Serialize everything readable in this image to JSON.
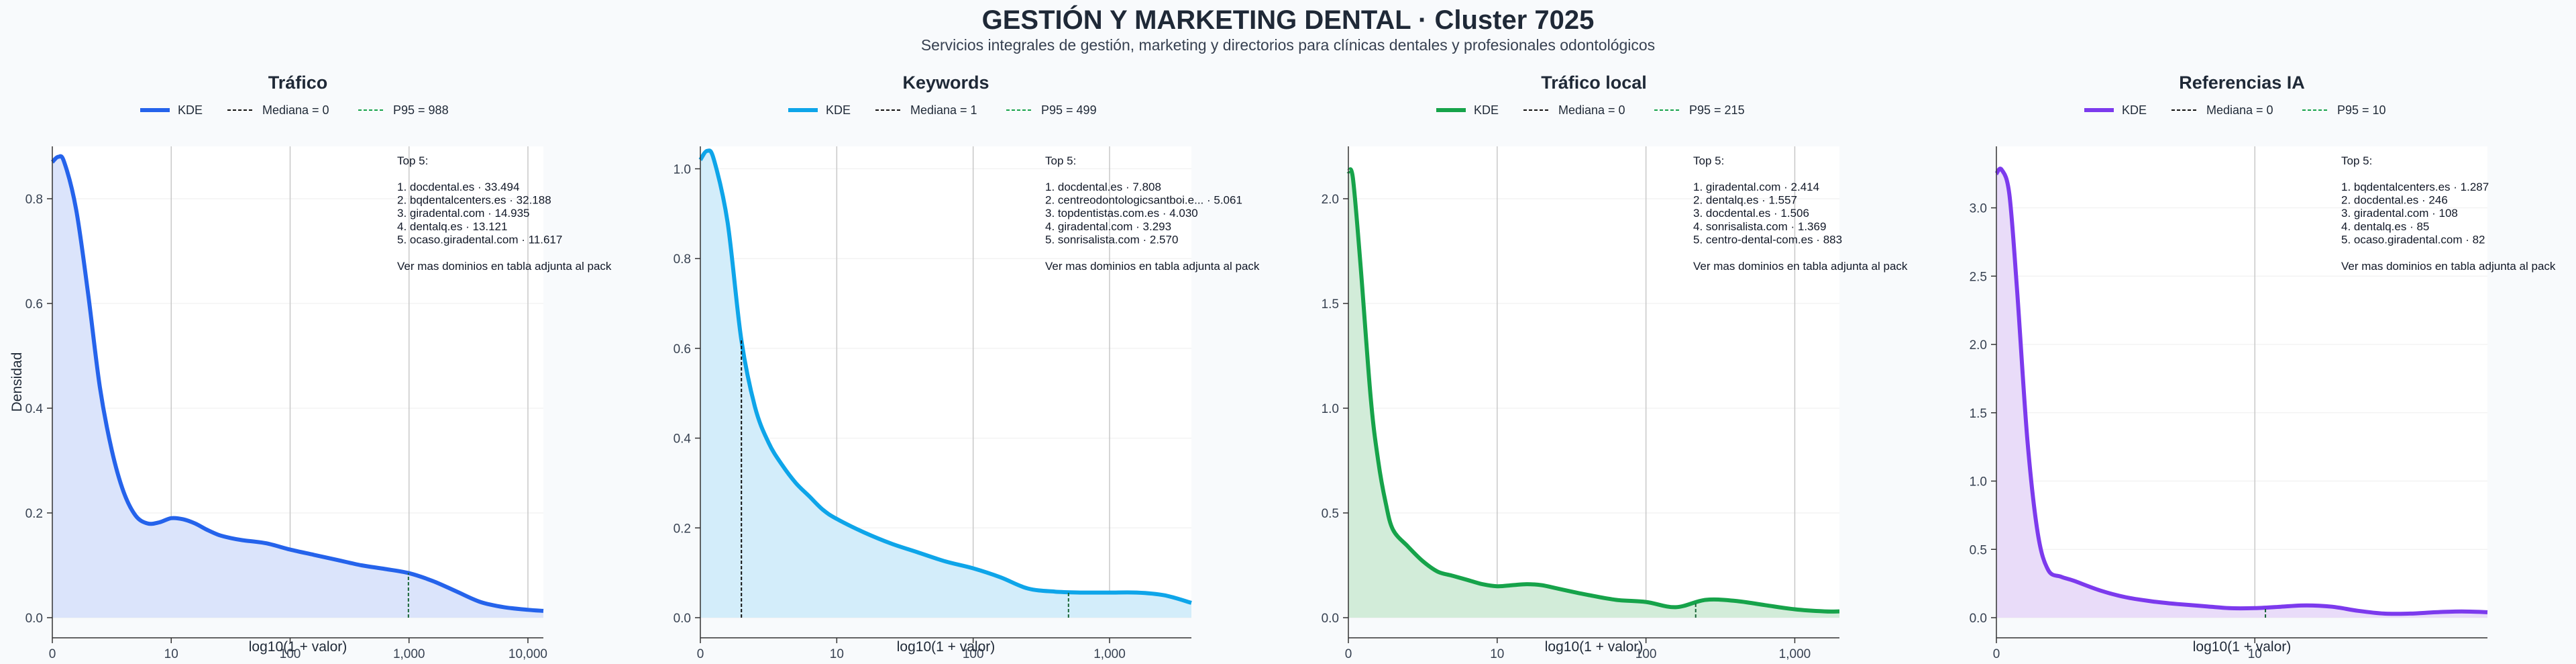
{
  "header": {
    "title": "GESTIÓN Y MARKETING DENTAL · Cluster 7025",
    "subtitle": "Servicios integrales de gestión, marketing y directorios para clínicas dentales y profesionales odontológicos"
  },
  "chart_data": [
    {
      "type": "area",
      "title": "Tráfico",
      "color": "#2563eb",
      "fill": "#dbe4fb",
      "xlabel": "log10(1 + valor)",
      "ylabel": "Densidad",
      "x_scale": "log10(1+x)",
      "xlim": [
        0,
        4.13
      ],
      "ylim": [
        0,
        0.9
      ],
      "xticks": [
        {
          "v": 0,
          "label": "0"
        },
        {
          "v": 1,
          "label": "10"
        },
        {
          "v": 2,
          "label": "100"
        },
        {
          "v": 3,
          "label": "1,000"
        },
        {
          "v": 4,
          "label": "10,000"
        }
      ],
      "yticks": [
        {
          "v": 0,
          "label": "0.0"
        },
        {
          "v": 0.2,
          "label": "0.2"
        },
        {
          "v": 0.4,
          "label": "0.4"
        },
        {
          "v": 0.6,
          "label": "0.6"
        },
        {
          "v": 0.8,
          "label": "0.8"
        }
      ],
      "legend": {
        "kde": "KDE",
        "median": "Mediana = 0",
        "p95": "P95 = 988"
      },
      "median": 0,
      "p95": 2.995,
      "x": [
        0,
        0.05,
        0.1,
        0.2,
        0.3,
        0.4,
        0.5,
        0.6,
        0.7,
        0.8,
        0.9,
        1.0,
        1.1,
        1.2,
        1.3,
        1.4,
        1.5,
        1.6,
        1.8,
        2.0,
        2.2,
        2.4,
        2.6,
        2.8,
        3.0,
        3.2,
        3.4,
        3.6,
        3.8,
        4.0,
        4.13
      ],
      "y": [
        0.87,
        0.88,
        0.87,
        0.78,
        0.62,
        0.44,
        0.32,
        0.24,
        0.195,
        0.18,
        0.182,
        0.19,
        0.188,
        0.18,
        0.168,
        0.158,
        0.152,
        0.148,
        0.142,
        0.13,
        0.12,
        0.11,
        0.1,
        0.093,
        0.085,
        0.07,
        0.05,
        0.03,
        0.02,
        0.015,
        0.013
      ],
      "top5": {
        "header": "Top 5:",
        "items": [
          "1. docdental.es · 33.494",
          "2. bqdentalcenters.es · 32.188",
          "3. giradental.com · 14.935",
          "4. dentalq.es · 13.121",
          "5. ocaso.giradental.com · 11.617"
        ],
        "footer": "Ver mas dominios en tabla adjunta al pack"
      }
    },
    {
      "type": "area",
      "title": "Keywords",
      "color": "#0ea5e9",
      "fill": "#d3edfa",
      "xlabel": "log10(1 + valor)",
      "ylabel": "",
      "x_scale": "log10(1+x)",
      "xlim": [
        0,
        3.6
      ],
      "ylim": [
        0,
        1.05
      ],
      "xticks": [
        {
          "v": 0,
          "label": "0"
        },
        {
          "v": 1,
          "label": "10"
        },
        {
          "v": 2,
          "label": "100"
        },
        {
          "v": 3,
          "label": "1,000"
        }
      ],
      "yticks": [
        {
          "v": 0,
          "label": "0.0"
        },
        {
          "v": 0.2,
          "label": "0.2"
        },
        {
          "v": 0.4,
          "label": "0.4"
        },
        {
          "v": 0.6,
          "label": "0.6"
        },
        {
          "v": 0.8,
          "label": "0.8"
        },
        {
          "v": 1.0,
          "label": "1.0"
        }
      ],
      "legend": {
        "kde": "KDE",
        "median": "Mediana = 1",
        "p95": "P95 = 499"
      },
      "median": 0.301,
      "p95": 2.699,
      "x": [
        0,
        0.05,
        0.1,
        0.2,
        0.3,
        0.4,
        0.5,
        0.6,
        0.7,
        0.8,
        0.9,
        1.0,
        1.2,
        1.4,
        1.6,
        1.8,
        2.0,
        2.2,
        2.4,
        2.6,
        2.8,
        3.0,
        3.2,
        3.4,
        3.6
      ],
      "y": [
        1.02,
        1.04,
        1.02,
        0.88,
        0.62,
        0.47,
        0.39,
        0.34,
        0.3,
        0.27,
        0.24,
        0.22,
        0.19,
        0.165,
        0.145,
        0.125,
        0.11,
        0.09,
        0.065,
        0.058,
        0.056,
        0.056,
        0.056,
        0.05,
        0.033
      ],
      "top5": {
        "header": "Top 5:",
        "items": [
          "1. docdental.es · 7.808",
          "2. centreodontologicsantboi.e... · 5.061",
          "3. topdentistas.com.es · 4.030",
          "4. giradental.com · 3.293",
          "5. sonrisalista.com · 2.570"
        ],
        "footer": "Ver mas dominios en tabla adjunta al pack"
      }
    },
    {
      "type": "area",
      "title": "Tráfico local",
      "color": "#16a34a",
      "fill": "#d2ecd9",
      "xlabel": "log10(1 + valor)",
      "ylabel": "",
      "x_scale": "log10(1+x)",
      "xlim": [
        0,
        3.3
      ],
      "ylim": [
        0,
        2.25
      ],
      "xticks": [
        {
          "v": 0,
          "label": "0"
        },
        {
          "v": 1,
          "label": "10"
        },
        {
          "v": 2,
          "label": "100"
        },
        {
          "v": 3,
          "label": "1,000"
        }
      ],
      "yticks": [
        {
          "v": 0,
          "label": "0.0"
        },
        {
          "v": 0.5,
          "label": "0.5"
        },
        {
          "v": 1.0,
          "label": "1.0"
        },
        {
          "v": 1.5,
          "label": "1.5"
        },
        {
          "v": 2.0,
          "label": "2.0"
        }
      ],
      "legend": {
        "kde": "KDE",
        "median": "Mediana = 0",
        "p95": "P95 = 215"
      },
      "median": 0,
      "p95": 2.334,
      "x": [
        0,
        0.03,
        0.08,
        0.15,
        0.2,
        0.25,
        0.3,
        0.4,
        0.5,
        0.6,
        0.7,
        0.8,
        0.9,
        1.0,
        1.1,
        1.2,
        1.3,
        1.4,
        1.6,
        1.8,
        2.0,
        2.2,
        2.4,
        2.6,
        2.8,
        3.0,
        3.2,
        3.3
      ],
      "y": [
        2.13,
        2.1,
        1.7,
        1.05,
        0.75,
        0.55,
        0.42,
        0.34,
        0.27,
        0.22,
        0.2,
        0.18,
        0.16,
        0.15,
        0.155,
        0.16,
        0.155,
        0.14,
        0.11,
        0.085,
        0.075,
        0.05,
        0.085,
        0.08,
        0.06,
        0.04,
        0.03,
        0.03
      ],
      "top5": {
        "header": "Top 5:",
        "items": [
          "1. giradental.com · 2.414",
          "2. dentalq.es · 1.557",
          "3. docdental.es · 1.506",
          "4. sonrisalista.com · 1.369",
          "5. centro-dental-com.es · 883"
        ],
        "footer": "Ver mas dominios en tabla adjunta al pack"
      }
    },
    {
      "type": "area",
      "title": "Referencias IA",
      "color": "#7c3aed",
      "fill": "#e9dcf9",
      "xlabel": "log10(1 + valor)",
      "ylabel": "",
      "x_scale": "log10(1+x)",
      "xlim": [
        0,
        1.9
      ],
      "ylim": [
        0,
        3.45
      ],
      "xticks": [
        {
          "v": 0,
          "label": "0"
        },
        {
          "v": 1,
          "label": "10"
        }
      ],
      "yticks": [
        {
          "v": 0,
          "label": "0.0"
        },
        {
          "v": 0.5,
          "label": "0.5"
        },
        {
          "v": 1.0,
          "label": "1.0"
        },
        {
          "v": 1.5,
          "label": "1.5"
        },
        {
          "v": 2.0,
          "label": "2.0"
        },
        {
          "v": 2.5,
          "label": "2.5"
        },
        {
          "v": 3.0,
          "label": "3.0"
        }
      ],
      "legend": {
        "kde": "KDE",
        "median": "Mediana = 0",
        "p95": "P95 = 10"
      },
      "median": 0,
      "p95": 1.041,
      "x": [
        0,
        0.02,
        0.05,
        0.08,
        0.12,
        0.16,
        0.2,
        0.25,
        0.3,
        0.4,
        0.5,
        0.6,
        0.7,
        0.8,
        0.9,
        1.0,
        1.1,
        1.2,
        1.3,
        1.4,
        1.5,
        1.6,
        1.7,
        1.8,
        1.9
      ],
      "y": [
        3.25,
        3.28,
        3.1,
        2.4,
        1.3,
        0.62,
        0.35,
        0.3,
        0.27,
        0.2,
        0.15,
        0.12,
        0.1,
        0.085,
        0.07,
        0.07,
        0.08,
        0.09,
        0.08,
        0.05,
        0.03,
        0.03,
        0.04,
        0.045,
        0.04
      ],
      "top5": {
        "header": "Top 5:",
        "items": [
          "1. bqdentalcenters.es · 1.287",
          "2. docdental.es · 246",
          "3. giradental.com · 108",
          "4. dentalq.es · 85",
          "5. ocaso.giradental.com · 82"
        ],
        "footer": "Ver mas dominios en tabla adjunta al pack"
      }
    }
  ]
}
